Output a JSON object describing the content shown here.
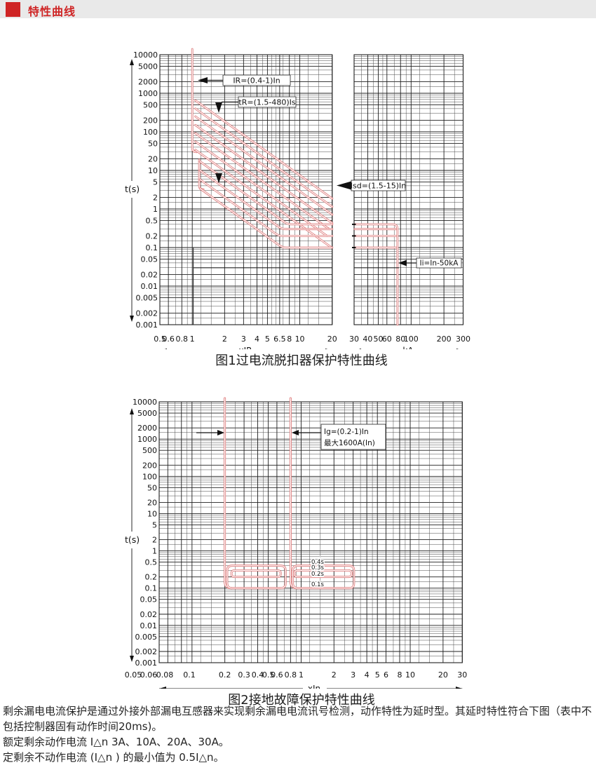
{
  "header": {
    "title": "特性曲线"
  },
  "colors": {
    "accent": "#cf2525",
    "bar_bg": "#e9e9e9",
    "curve": "#dd7575",
    "curve_core": "#ffffff",
    "grid": "#4a4a4a",
    "grid_major": "#1f1f1f",
    "ink": "#111111"
  },
  "chart_data": [
    {
      "type": "line",
      "title": "图1过电流脱扣器保护特性曲线",
      "ylabel": "t(s)",
      "ylim": [
        0.001,
        10000
      ],
      "yticks": [
        10000,
        5000,
        2000,
        1000,
        500,
        200,
        100,
        50,
        20,
        10,
        5,
        2,
        1,
        0.5,
        0.2,
        0.1,
        0.05,
        0.02,
        0.01,
        0.005,
        0.002,
        0.001
      ],
      "panels": [
        {
          "xlabel": "xIR",
          "xlim": [
            0.5,
            20
          ],
          "xticks": [
            0.5,
            0.6,
            0.8,
            1,
            2,
            3,
            4,
            5,
            6.5,
            8,
            10,
            20
          ]
        },
        {
          "xlabel": "kA",
          "xlim": [
            30,
            300
          ],
          "xticks": [
            30,
            40,
            50,
            60,
            80,
            100,
            200,
            300
          ]
        }
      ],
      "annotations": [
        {
          "id": "long-time-pickup",
          "text": "IR=(0.4-1)In"
        },
        {
          "id": "long-time-delay",
          "text": "tR=(1.5-480)Is"
        },
        {
          "id": "short-time-pickup",
          "text": "Isd=(1.5-15)In"
        },
        {
          "id": "instantaneous",
          "text": "Ii=In-50kA"
        }
      ],
      "model": {
        "overload_pickup_xIR": 1,
        "long_delay_branch_t0_s": [
          650,
          400,
          250,
          150,
          92,
          56,
          34
        ],
        "short_branch_t0_s": [
          17,
          10,
          5.8,
          3.4
        ],
        "short_delay_plateaus_s": [
          0.4,
          0.3,
          0.2,
          0.1
        ],
        "instantaneous_cutoff_kA": 75,
        "fixed_operate_time_s": 0.03
      },
      "grid": true,
      "legend": "none"
    },
    {
      "type": "line",
      "title": "图2接地故障保护特性曲线",
      "ylabel": "t(s)",
      "xlabel": "xIn",
      "xlim": [
        0.05,
        30
      ],
      "ylim": [
        0.001,
        10000
      ],
      "xticks": [
        0.05,
        0.06,
        0.08,
        0.1,
        0.2,
        0.3,
        0.4,
        0.5,
        0.6,
        0.8,
        1,
        2,
        3,
        4,
        5,
        6,
        8,
        10,
        20,
        30
      ],
      "yticks": [
        10000,
        5000,
        2000,
        1000,
        500,
        200,
        100,
        50,
        20,
        10,
        5,
        2,
        1,
        0.5,
        0.2,
        0.1,
        0.05,
        0.02,
        0.01,
        0.005,
        0.002,
        0.001
      ],
      "annotations": [
        {
          "id": "ground-fault-pickup",
          "text": "Ig=(0.2-1)In"
        },
        {
          "id": "ground-fault-max",
          "text": "最大1600A(In)"
        }
      ],
      "delay_labels": [
        "0.4s",
        "0.3s",
        "0.2s",
        "0.1s"
      ],
      "model": {
        "pickup_xIn": [
          0.2,
          0.8
        ],
        "delay_settings_s": [
          0.4,
          0.3,
          0.2,
          0.1
        ],
        "band_x_ranges": [
          [
            0.21,
            0.72
          ],
          [
            0.84,
            3.05
          ]
        ]
      },
      "grid": true,
      "legend": "none"
    }
  ],
  "footer": {
    "paragraphs": [
      "剩余漏电电流保护是通过外接外部漏电互感器来实现剩余漏电电流讯号检测，动作特性为延时型。其延时特性符合下图（表中不包括控制器固有动作时间20ms)。",
      "额定剩余动作电流 I△n 3A、10A、20A、30A。",
      "定剩余不动作电流 (I△n ) 的最小值为 0.5I△n。"
    ]
  }
}
